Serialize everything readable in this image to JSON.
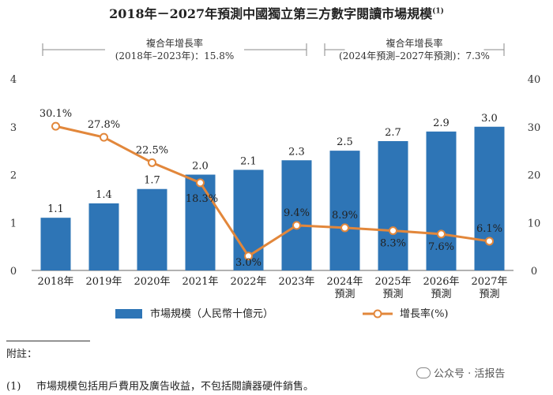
{
  "title": "2018年－2027年預測中國獨立第三方數字閱讀市場規模",
  "title_note": "(1)",
  "cagr": [
    {
      "label": "複合年增長率",
      "detail": "(2018年–2023年)：15.8%"
    },
    {
      "label": "複合年增長率",
      "detail": "(2024年預測–2027年預測)：7.3%"
    }
  ],
  "chart_data": {
    "type": "bar+line",
    "categories": [
      [
        "2018年"
      ],
      [
        "2019年"
      ],
      [
        "2020年"
      ],
      [
        "2021年"
      ],
      [
        "2022年"
      ],
      [
        "2023年"
      ],
      [
        "2024年",
        "預測"
      ],
      [
        "2025年",
        "預測"
      ],
      [
        "2026年",
        "預測"
      ],
      [
        "2027年",
        "預測"
      ]
    ],
    "bars": {
      "name": "市場規模（人民幣十億元）",
      "values": [
        1.1,
        1.4,
        1.7,
        2.0,
        2.1,
        2.3,
        2.5,
        2.7,
        2.9,
        3.0
      ],
      "labels": [
        "1.1",
        "1.4",
        "1.7",
        "2.0",
        "2.1",
        "2.3",
        "2.5",
        "2.7",
        "2.9",
        "3.0"
      ],
      "color": "#2e75b6"
    },
    "line": {
      "name": "增長率(%)",
      "values": [
        30.1,
        27.8,
        22.5,
        18.3,
        3.0,
        9.4,
        8.9,
        8.3,
        7.6,
        6.1
      ],
      "labels": [
        "30.1%",
        "27.8%",
        "22.5%",
        "18.3%",
        "3.0%",
        "9.4%",
        "8.9%",
        "8.3%",
        "7.6%",
        "6.1%"
      ],
      "color": "#e2873b"
    },
    "y_left": {
      "min": 0,
      "max": 4,
      "ticks": [
        "0",
        "1",
        "2",
        "3",
        "4"
      ]
    },
    "y_right": {
      "min": 0,
      "max": 40,
      "ticks": [
        "0",
        "10",
        "20",
        "30",
        "40"
      ]
    },
    "legend_position": "bottom"
  },
  "footnote": {
    "label": "附註：",
    "items": [
      {
        "num": "(1)",
        "text": "市場規模包括用戶費用及廣告收益，不包括閱讀器硬件銷售。"
      }
    ]
  },
  "watermark": "公众号 · 活报告"
}
